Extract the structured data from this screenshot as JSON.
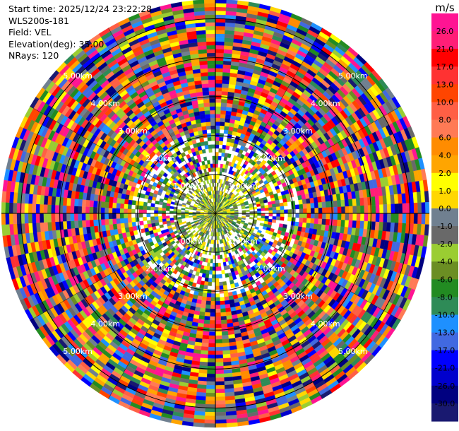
{
  "header": {
    "start_time": "Start time: 2025/12/24 23:22:28",
    "instrument": "WLS200s-181",
    "field": "Field: VEL",
    "elevation": "Elevation(deg): 35.00",
    "nrays": "NRays: 120"
  },
  "chart_data": {
    "type": "heatmap",
    "projection": "polar-ppi",
    "field": "VEL",
    "units": "m/s",
    "elevation_deg": 35.0,
    "n_rays": 120,
    "range_rings_km": [
      1.0,
      2.0,
      3.0,
      4.0,
      5.0
    ],
    "ring_labels": [
      "1.00km",
      "2.00km",
      "3.00km",
      "4.00km",
      "5.00km"
    ],
    "max_range_km": 5.5,
    "colorbar": {
      "unit_label": "m/s",
      "ticks": [
        "26.0",
        "21.0",
        "17.0",
        "13.0",
        "10.0",
        "8.0",
        "6.0",
        "4.0",
        "2.0",
        "1.0",
        "0.0",
        "-1.0",
        "-2.0",
        "-4.0",
        "-6.0",
        "-8.0",
        "-10.0",
        "-13.0",
        "-17.0",
        "-21.0",
        "-26.0",
        "-30.0"
      ],
      "colors": [
        "#ff1493",
        "#ff1e77",
        "#ff0000",
        "#ff3232",
        "#ff4500",
        "#ff5f45",
        "#ff7a55",
        "#ff8c00",
        "#ffa500",
        "#ffff00",
        "#ffd700",
        "#708090",
        "#696969",
        "#9acd32",
        "#6b8e23",
        "#228b22",
        "#2e8b57",
        "#1e90ff",
        "#4169e1",
        "#0000ff",
        "#0000cd",
        "#000080",
        "#191970"
      ]
    }
  }
}
